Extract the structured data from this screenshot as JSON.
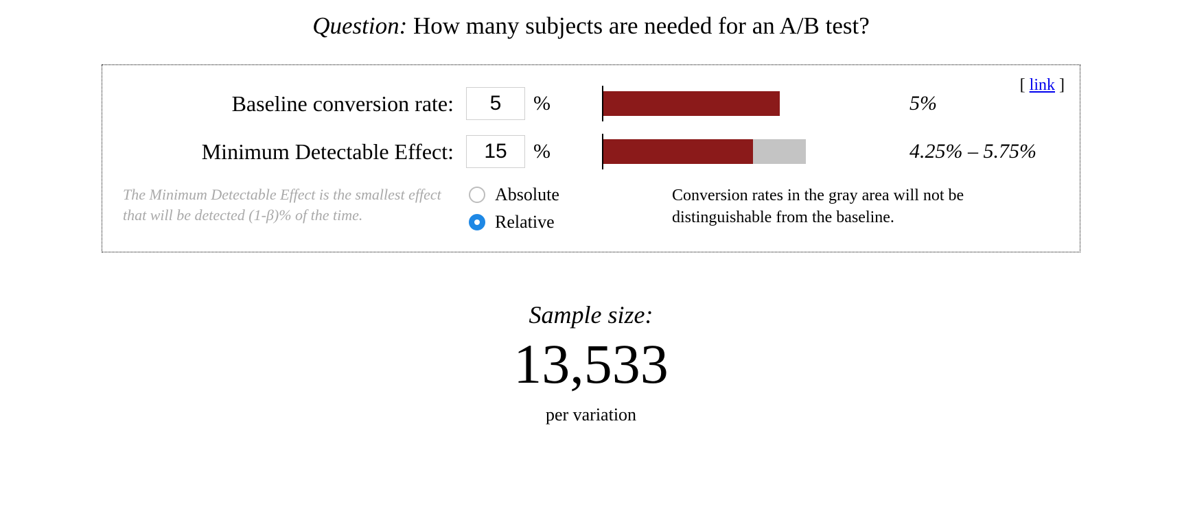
{
  "question": {
    "label": "Question:",
    "text": "How many subjects are needed for an A/B test?"
  },
  "panel": {
    "link_text": "link",
    "baseline": {
      "label": "Baseline conversion rate:",
      "value": "5",
      "unit": "%",
      "bar": {
        "fill_pct": 60,
        "track_pct": 60,
        "fill_color": "#8b1a1a",
        "track_color": "#c4c4c4"
      },
      "caption": "5%"
    },
    "mde": {
      "label": "Minimum Detectable Effect:",
      "value": "15",
      "unit": "%",
      "bar": {
        "fill_pct": 51,
        "track_pct": 69,
        "fill_color": "#8b1a1a",
        "track_color": "#c4c4c4"
      },
      "caption": "4.25% – 5.75%"
    },
    "mde_note": "The Minimum Detectable Effect is the smallest effect that will be detected (1-β)% of the time.",
    "mode": {
      "options": [
        {
          "label": "Absolute",
          "checked": false
        },
        {
          "label": "Relative",
          "checked": true
        }
      ],
      "accent_color": "#1e88e5"
    },
    "explain": "Conversion rates in the gray area will not be distinguishable from the baseline."
  },
  "result": {
    "title": "Sample size:",
    "value": "13,533",
    "sub": "per variation"
  }
}
